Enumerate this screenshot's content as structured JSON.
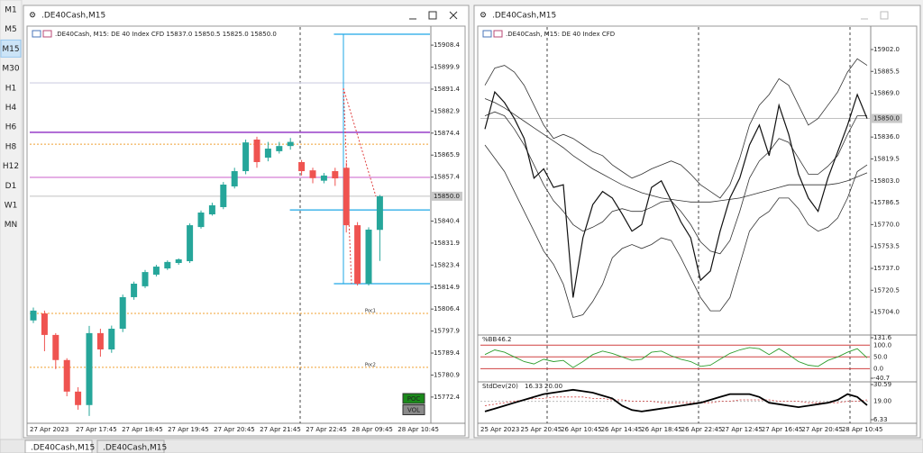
{
  "toolbar": {
    "timeframes": [
      "M1",
      "M5",
      "M15",
      "M30",
      "H1",
      "H4",
      "H6",
      "H8",
      "H12",
      "D1",
      "W1",
      "MN"
    ],
    "active": "M15"
  },
  "windows": [
    {
      "title": ".DE40Cash,M15",
      "header": ".DE40Cash, M15:  DE 40 Index CFD  15837.0 15850.5 15825.0 15850.0",
      "type": "candlestick",
      "up_color": "#26a69a",
      "down_color": "#ef5350",
      "ylim": [
        15764,
        15914.7
      ],
      "yticks": [
        15908.4,
        15899.9,
        15891.4,
        15882.9,
        15874.4,
        15865.9,
        15857.4,
        15840.4,
        15831.9,
        15823.4,
        15814.9,
        15806.4,
        15797.9,
        15789.4,
        15780.9,
        15772.4
      ],
      "last_price": {
        "value": 15850,
        "label": "15850.0"
      },
      "time_labels": [
        "27 Apr 2023",
        "27 Apr 17:45",
        "27 Apr 18:45",
        "27 Apr 19:45",
        "27 Apr 20:45",
        "27 Apr 21:45",
        "27 Apr 22:45",
        "28 Apr 09:45",
        "28 Apr 10:45"
      ],
      "candles": {
        "open": [
          15802.0,
          15804.7,
          15796.4,
          15786.7,
          15774.5,
          15769.3,
          15797.1,
          15790.8,
          15798.8,
          15811.0,
          15815.2,
          15819.7,
          15822.1,
          15824.2,
          15824.9,
          15838.1,
          15843.0,
          15845.8,
          15853.8,
          15859.7,
          15871.9,
          15864.9,
          15867.4,
          15869.4,
          15863.2,
          15860.0,
          15856.0,
          15859.7,
          15861.0,
          15838.8,
          15816.2,
          15837.0
        ],
        "high": [
          15807.0,
          15805.8,
          15797.1,
          15787.4,
          15776.2,
          15799.9,
          15798.8,
          15800.0,
          15812.0,
          15817.0,
          15821.5,
          15823.5,
          15825.2,
          15826.0,
          15839.5,
          15844.5,
          15847.5,
          15855.5,
          15861.0,
          15871.9,
          15873.0,
          15871.0,
          15871.0,
          15872.5,
          15864.0,
          15861.0,
          15859.0,
          15861.0,
          15863.0,
          15840.0,
          15838.0,
          15850.5
        ],
        "low": [
          15801.0,
          15790.1,
          15783.2,
          15772.7,
          15767.5,
          15765.1,
          15788.0,
          15789.5,
          15797.5,
          15810.0,
          15814.5,
          15819.0,
          15821.5,
          15823.5,
          15824.2,
          15837.5,
          15842.5,
          15845.0,
          15853.0,
          15858.5,
          15861.0,
          15863.5,
          15866.5,
          15868.0,
          15858.0,
          15855.0,
          15855.0,
          15854.0,
          15836.0,
          15815.5,
          15815.5,
          15825.0
        ],
        "close": [
          15805.8,
          15796.4,
          15786.7,
          15774.5,
          15769.3,
          15797.1,
          15790.8,
          15798.8,
          15811.0,
          15816.2,
          15820.7,
          15822.8,
          15824.6,
          15825.6,
          15838.8,
          15843.7,
          15846.5,
          15854.5,
          15859.7,
          15870.8,
          15863.2,
          15868.4,
          15869.4,
          15871.0,
          15859.7,
          15857.0,
          15858.0,
          15856.9,
          15838.8,
          15816.2,
          15837.1,
          15850.0
        ]
      },
      "levels": [
        {
          "value": 15912.6,
          "color": "#1ea7e6",
          "from": 0.76,
          "style": "solid"
        },
        {
          "value": 15816.2,
          "color": "#1ea7e6",
          "from": 0.76,
          "style": "solid"
        },
        {
          "value": 15874.7,
          "color": "#8e2bc4",
          "from": 0,
          "style": "solid"
        },
        {
          "value": 15870.1,
          "color": "#f0a030",
          "from": 0,
          "style": "dotted"
        },
        {
          "value": 15857.3,
          "color": "#d98ad9",
          "from": 0,
          "style": "solid"
        },
        {
          "value": 15893.8,
          "color": "#d8d8e8",
          "from": 0,
          "style": "solid"
        },
        {
          "value": 15844.7,
          "color": "#1ea7e6",
          "from": 0.65,
          "style": "solid"
        },
        {
          "value": 15804.7,
          "color": "#f0a030",
          "from": 0,
          "style": "dotted",
          "label": "Poc1"
        },
        {
          "value": 15783.9,
          "color": "#f0a030",
          "from": 0,
          "style": "dotted",
          "label": "Poc2"
        }
      ],
      "buttons": [
        "POC",
        "VOL"
      ]
    },
    {
      "title": ".DE40Cash,M15",
      "header": ".DE40Cash, M15:  DE 40 Index CFD",
      "type": "line",
      "color": "#111111",
      "ylim": [
        15688.1,
        15917.6
      ],
      "yticks": [
        {
          "value": 15902,
          "label": "15902.0"
        },
        15885.5,
        {
          "value": 15869,
          "label": "15869.0"
        },
        {
          "value": 15836,
          "label": "15836.0"
        },
        15819.5,
        {
          "value": 15803,
          "label": "15803.0"
        },
        15786.5,
        {
          "value": 15770,
          "label": "15770.0"
        },
        15753.5,
        {
          "value": 15737,
          "label": "15737.0"
        },
        15720.5,
        {
          "value": 15704,
          "label": "15704.0"
        }
      ],
      "last_price": {
        "value": 15850,
        "label": "15850.0"
      },
      "time_labels": [
        "25 Apr 2023",
        "25 Apr 20:45",
        "26 Apr 10:45",
        "26 Apr 14:45",
        "26 Apr 18:45",
        "26 Apr 22:45",
        "27 Apr 12:45",
        "27 Apr 16:45",
        "27 Apr 20:45",
        "28 Apr 10:45"
      ],
      "close": [
        15842,
        15870,
        15862,
        15850,
        15835,
        15805,
        15812,
        15798,
        15800,
        15715,
        15760,
        15785,
        15795,
        15790,
        15778,
        15765,
        15770,
        15798,
        15803,
        15788,
        15772,
        15760,
        15728,
        15735,
        15765,
        15790,
        15805,
        15830,
        15845,
        15822,
        15860,
        15838,
        15808,
        15790,
        15780,
        15805,
        15825,
        15845,
        15868,
        15850
      ],
      "bands": {
        "upper": [
          15875,
          15888,
          15890,
          15885,
          15875,
          15860,
          15845,
          15835,
          15838,
          15835,
          15830,
          15825,
          15822,
          15815,
          15810,
          15805,
          15808,
          15812,
          15815,
          15818,
          15815,
          15808,
          15800,
          15795,
          15790,
          15800,
          15820,
          15845,
          15860,
          15868,
          15880,
          15875,
          15860,
          15845,
          15850,
          15860,
          15870,
          15885,
          15895,
          15890
        ],
        "middle": [
          15852,
          15855,
          15852,
          15842,
          15830,
          15815,
          15800,
          15788,
          15780,
          15770,
          15765,
          15768,
          15772,
          15780,
          15782,
          15780,
          15780,
          15783,
          15787,
          15788,
          15780,
          15770,
          15757,
          15750,
          15748,
          15758,
          15780,
          15805,
          15818,
          15825,
          15835,
          15832,
          15820,
          15808,
          15808,
          15814,
          15822,
          15838,
          15852,
          15852
        ],
        "lower": [
          15830,
          15820,
          15810,
          15795,
          15780,
          15765,
          15750,
          15740,
          15725,
          15700,
          15702,
          15712,
          15725,
          15745,
          15752,
          15755,
          15752,
          15755,
          15760,
          15758,
          15745,
          15730,
          15715,
          15705,
          15705,
          15715,
          15740,
          15765,
          15775,
          15780,
          15790,
          15790,
          15782,
          15770,
          15765,
          15768,
          15775,
          15790,
          15810,
          15815
        ]
      },
      "ma": [
        15865,
        15862,
        15858,
        15853,
        15848,
        15843,
        15838,
        15833,
        15828,
        15822,
        15817,
        15812,
        15808,
        15804,
        15800,
        15797,
        15794,
        15792,
        15790,
        15789,
        15788,
        15787,
        15787,
        15787,
        15788,
        15789,
        15790,
        15792,
        15794,
        15796,
        15798,
        15800,
        15800,
        15800,
        15800,
        15800,
        15801,
        15803,
        15806,
        15809
      ],
      "indicators": [
        {
          "name": "%BB",
          "color": "#2e9e2e",
          "ylim": [
            -40.7,
            131.6
          ],
          "yticks": [
            131.6,
            {
              "value": 100,
              "label": "100.0"
            },
            {
              "value": 50,
              "label": "50.0"
            },
            {
              "value": 0,
              "label": "0.0"
            },
            -40.7
          ],
          "values": [
            60,
            80,
            70,
            50,
            30,
            20,
            40,
            30,
            35,
            5,
            30,
            60,
            75,
            65,
            50,
            35,
            40,
            70,
            75,
            55,
            40,
            30,
            10,
            15,
            40,
            65,
            80,
            90,
            85,
            60,
            85,
            60,
            30,
            15,
            10,
            35,
            50,
            70,
            85,
            46.2
          ]
        },
        {
          "name": "StdDev(20)",
          "color": "#000000",
          "ylim": [
            6.33,
            30.59
          ],
          "yticks": [
            30.59,
            {
              "value": 19,
              "label": "19.00"
            },
            6.33
          ],
          "values": [
            12,
            14,
            16,
            18,
            20,
            22,
            24,
            25,
            26,
            27,
            26,
            25,
            23,
            21,
            16,
            13,
            12,
            13,
            14,
            15,
            16,
            17,
            18,
            20,
            22,
            24,
            24,
            24,
            22,
            18,
            17,
            16,
            15,
            16,
            17,
            18,
            20,
            24,
            22,
            16.33
          ],
          "signal": [
            16,
            17,
            18,
            19,
            20,
            21,
            21,
            22,
            22,
            22,
            22,
            21,
            21,
            20,
            20,
            19,
            19,
            19,
            18,
            18,
            18,
            18,
            18,
            18,
            19,
            19,
            20,
            20,
            20,
            20,
            19,
            19,
            19,
            18,
            18,
            18,
            18,
            19,
            19,
            20
          ],
          "signal_label": "20.00"
        }
      ]
    }
  ],
  "tabs": [
    ".DE40Cash,M15",
    ".DE40Cash,M15"
  ]
}
